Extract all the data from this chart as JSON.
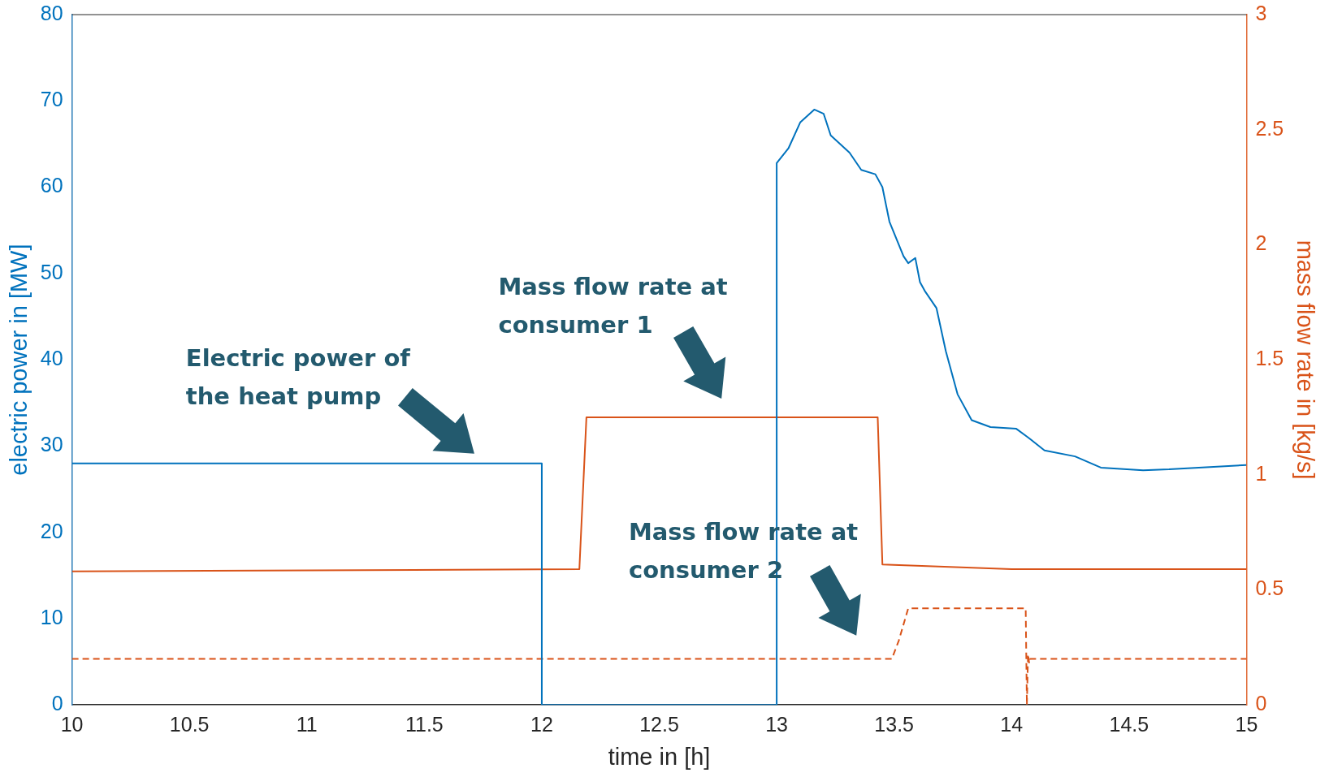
{
  "chart_data": {
    "type": "line",
    "xlabel": "time in [h]",
    "ylabel": "electric power in [MW]",
    "y2label": "mass flow rate in [kg/s]",
    "xlim": [
      10,
      15
    ],
    "xticks": [
      10,
      10.5,
      11,
      11.5,
      12,
      12.5,
      13,
      13.5,
      14,
      14.5,
      15
    ],
    "ylim": [
      0,
      80
    ],
    "yticks": [
      0,
      10,
      20,
      30,
      40,
      50,
      60,
      70,
      80
    ],
    "y2lim": [
      0,
      3
    ],
    "y2ticks": [
      0,
      0.5,
      1,
      1.5,
      2,
      2.5,
      3
    ],
    "grid": false,
    "legend": false,
    "marker": "none",
    "series": [
      {
        "color": "#0072bd",
        "line_style": "solid",
        "x": [
          10,
          12,
          12,
          13,
          13,
          13.05,
          13.1,
          13.16,
          13.2,
          13.23,
          13.31,
          13.36,
          13.42,
          13.45,
          13.48,
          13.54,
          13.56,
          13.59,
          13.61,
          13.63,
          13.68,
          13.72,
          13.77,
          13.83,
          13.91,
          14.02,
          14.07,
          14.14,
          14.27,
          14.38,
          14.56,
          14.67,
          15
        ],
        "values": [
          28,
          28,
          0,
          0,
          62.8,
          64.5,
          67.5,
          69,
          68.5,
          66,
          64,
          62,
          61.5,
          60,
          56,
          52,
          51.2,
          51.8,
          49,
          48,
          46,
          41,
          36,
          33,
          32.2,
          32,
          31,
          29.5,
          28.8,
          27.5,
          27.2,
          27.3,
          27.8
        ]
      },
      {
        "color": "#d95319",
        "axis": "y2",
        "line_style": "solid",
        "x": [
          10,
          12.16,
          12.19,
          13.43,
          13.45,
          14,
          15
        ],
        "values": [
          0.58,
          0.59,
          1.25,
          1.25,
          0.61,
          0.59,
          0.59
        ]
      },
      {
        "color": "#d95319",
        "axis": "y2",
        "line_style": "dashed",
        "x": [
          10,
          13.49,
          13.52,
          13.56,
          14.06,
          14.065,
          14.07,
          14.075,
          14.08,
          15
        ],
        "values": [
          0.2,
          0.2,
          0.28,
          0.42,
          0.42,
          0,
          0.22,
          0.18,
          0.2,
          0.2
        ]
      }
    ],
    "annotations": [
      "Electric power of\nthe heat pump",
      "Mass flow rate at\nconsumer 1",
      "Mass flow rate at\nconsumer 2"
    ]
  }
}
